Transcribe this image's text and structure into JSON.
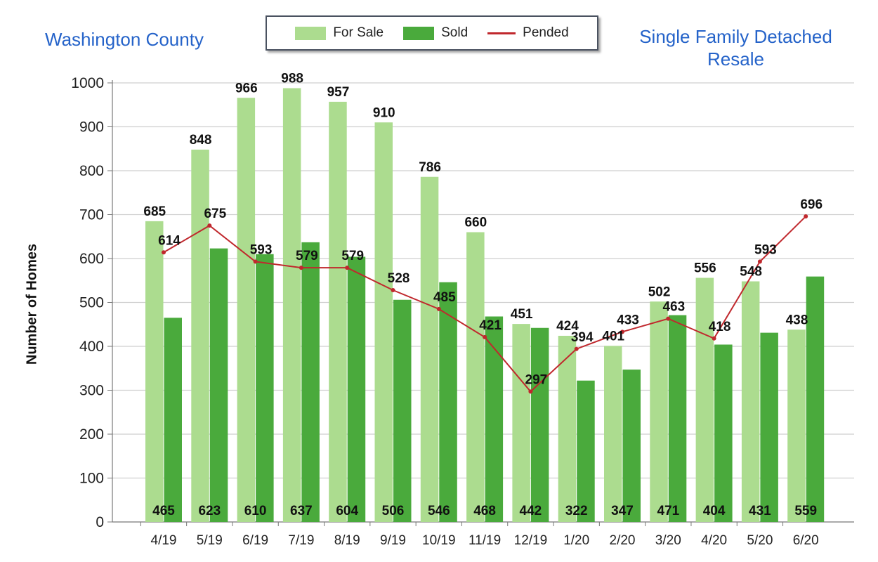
{
  "titles": {
    "left": "Washington County",
    "right": "Single Family Detached Resale"
  },
  "legend": {
    "for_sale": "For Sale",
    "sold": "Sold",
    "pended": "Pended"
  },
  "colors": {
    "for_sale": "#acdc8f",
    "sold": "#4aaa3c",
    "pended": "#c0282d",
    "grid": "#cfcfcf",
    "title": "#2563c9"
  },
  "chart_data": {
    "type": "bar",
    "categories": [
      "4/19",
      "5/19",
      "6/19",
      "7/19",
      "8/19",
      "9/19",
      "10/19",
      "11/19",
      "12/19",
      "1/20",
      "2/20",
      "3/20",
      "4/20",
      "5/20",
      "6/20"
    ],
    "series": [
      {
        "name": "For Sale",
        "type": "bar",
        "values": [
          685,
          848,
          966,
          988,
          957,
          910,
          786,
          660,
          451,
          424,
          401,
          502,
          556,
          548,
          438
        ]
      },
      {
        "name": "Sold",
        "type": "bar",
        "values": [
          465,
          623,
          610,
          637,
          604,
          506,
          546,
          468,
          442,
          322,
          347,
          471,
          404,
          431,
          559
        ]
      },
      {
        "name": "Pended",
        "type": "line",
        "values": [
          614,
          675,
          593,
          579,
          579,
          528,
          485,
          421,
          297,
          394,
          433,
          463,
          418,
          593,
          696
        ]
      }
    ],
    "ylabel": "Number of Homes",
    "xlabel": "",
    "ylim": [
      0,
      1000
    ],
    "yticks": [
      0,
      100,
      200,
      300,
      400,
      500,
      600,
      700,
      800,
      900,
      1000
    ],
    "grid": true,
    "legend_position": "top-center"
  }
}
